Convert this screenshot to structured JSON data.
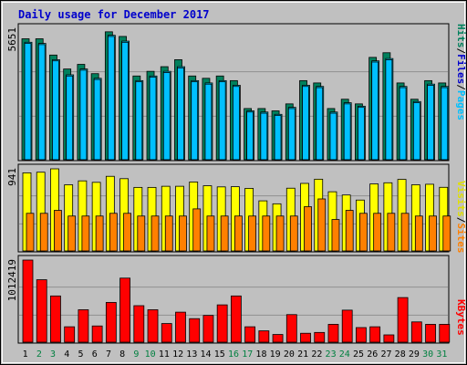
{
  "title": "Daily usage for December 2017",
  "colors": {
    "frame_bg": "#c0c0c0",
    "plot_bg": "#c0c0c0",
    "title": "#0000cc",
    "hits": "#00805c",
    "files": "#00e2ff",
    "pages": "#00c0ff",
    "visits": "#ffff00",
    "sites": "#ff8000",
    "kbytes": "#ff0000",
    "weekend_label": "#008040",
    "weekday_label": "#000000"
  },
  "panels": {
    "top": {
      "max_label": "5651",
      "legend": [
        {
          "text": "Hits",
          "color": "#00805c"
        },
        {
          "text": "/",
          "color": "#000000"
        },
        {
          "text": "Files",
          "color": "#0000cc"
        },
        {
          "text": "/",
          "color": "#000000"
        },
        {
          "text": "Pages",
          "color": "#00c0ff"
        }
      ]
    },
    "middle": {
      "max_label": "941",
      "legend": [
        {
          "text": "Visits",
          "color": "#e0e000"
        },
        {
          "text": "/",
          "color": "#000000"
        },
        {
          "text": "Sites",
          "color": "#ff8000"
        }
      ]
    },
    "bottom": {
      "max_label": "1012419",
      "legend": [
        {
          "text": "KBytes",
          "color": "#ff0000"
        }
      ]
    }
  },
  "chart_data": {
    "type": "bar",
    "title": "Daily usage for December 2017",
    "categories": [
      "1",
      "2",
      "3",
      "4",
      "5",
      "6",
      "7",
      "8",
      "9",
      "10",
      "11",
      "12",
      "13",
      "14",
      "15",
      "16",
      "17",
      "18",
      "19",
      "20",
      "21",
      "22",
      "23",
      "24",
      "25",
      "26",
      "27",
      "28",
      "29",
      "30",
      "31"
    ],
    "weekend_days": [
      2,
      3,
      9,
      10,
      16,
      17,
      23,
      24,
      30,
      31
    ],
    "series": [
      {
        "name": "Hits",
        "panel": "top",
        "values": [
          5200,
          5200,
          4500,
          3900,
          4100,
          3700,
          5500,
          5300,
          3600,
          3800,
          4000,
          4300,
          3600,
          3500,
          3600,
          3400,
          2200,
          2200,
          2100,
          2400,
          3400,
          3300,
          2200,
          2600,
          2400,
          4400,
          4600,
          3300,
          2600,
          3400,
          3300
        ]
      },
      {
        "name": "Files",
        "panel": "top",
        "values": [
          5050,
          5000,
          4300,
          3650,
          3900,
          3500,
          5350,
          5100,
          3400,
          3600,
          3800,
          4000,
          3400,
          3300,
          3400,
          3200,
          2100,
          2050,
          1950,
          2250,
          3200,
          3150,
          2050,
          2450,
          2300,
          4250,
          4350,
          3150,
          2500,
          3250,
          3150
        ]
      },
      {
        "name": "Pages",
        "panel": "top",
        "values": [
          5000,
          4950,
          4250,
          3600,
          3850,
          3450,
          5300,
          5050,
          3350,
          3550,
          3750,
          3950,
          3350,
          3250,
          3350,
          3150,
          2050,
          2000,
          1900,
          2200,
          3150,
          3100,
          2000,
          2400,
          2250,
          4200,
          4300,
          3100,
          2450,
          3200,
          3100
        ]
      },
      {
        "name": "Visits",
        "panel": "middle",
        "values": [
          895,
          902,
          941,
          758,
          803,
          786,
          855,
          828,
          728,
          728,
          741,
          741,
          790,
          747,
          734,
          736,
          717,
          574,
          540,
          719,
          774,
          822,
          678,
          641,
          583,
          768,
          781,
          820,
          758,
          764,
          729
        ]
      },
      {
        "name": "Sites",
        "panel": "middle",
        "values": [
          431,
          431,
          465,
          400,
          400,
          400,
          431,
          431,
          400,
          400,
          400,
          400,
          482,
          400,
          400,
          400,
          400,
          400,
          400,
          400,
          507,
          596,
          360,
          465,
          431,
          431,
          431,
          431,
          400,
          400,
          400
        ]
      },
      {
        "name": "KBytes",
        "panel": "bottom",
        "values": [
          1012419,
          770000,
          570000,
          190000,
          400000,
          200000,
          490000,
          790000,
          450000,
          400000,
          230000,
          370000,
          290000,
          330000,
          460000,
          570000,
          190000,
          140000,
          95000,
          340000,
          110000,
          120000,
          220000,
          395000,
          180000,
          190000,
          90000,
          550000,
          250000,
          220000,
          220000
        ]
      }
    ],
    "ylim": {
      "top": [
        0,
        5651
      ],
      "middle": [
        0,
        941
      ],
      "bottom": [
        0,
        1012419
      ]
    },
    "grid": true
  }
}
